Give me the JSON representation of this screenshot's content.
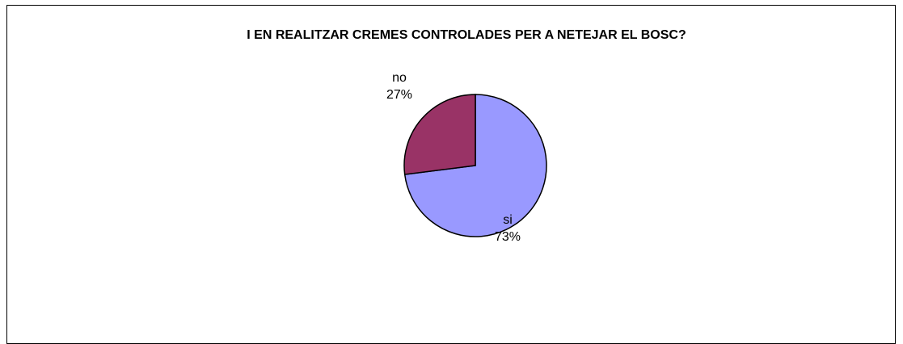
{
  "chart_data": {
    "type": "pie",
    "title": "I EN REALITZAR CREMES CONTROLADES PER A NETEJAR EL BOSC?",
    "slices": [
      {
        "label": "si",
        "value": 73,
        "percent_label": "73%",
        "color": "#9999FF"
      },
      {
        "label": "no",
        "value": 27,
        "percent_label": "27%",
        "color": "#993366"
      }
    ],
    "legend": false
  }
}
